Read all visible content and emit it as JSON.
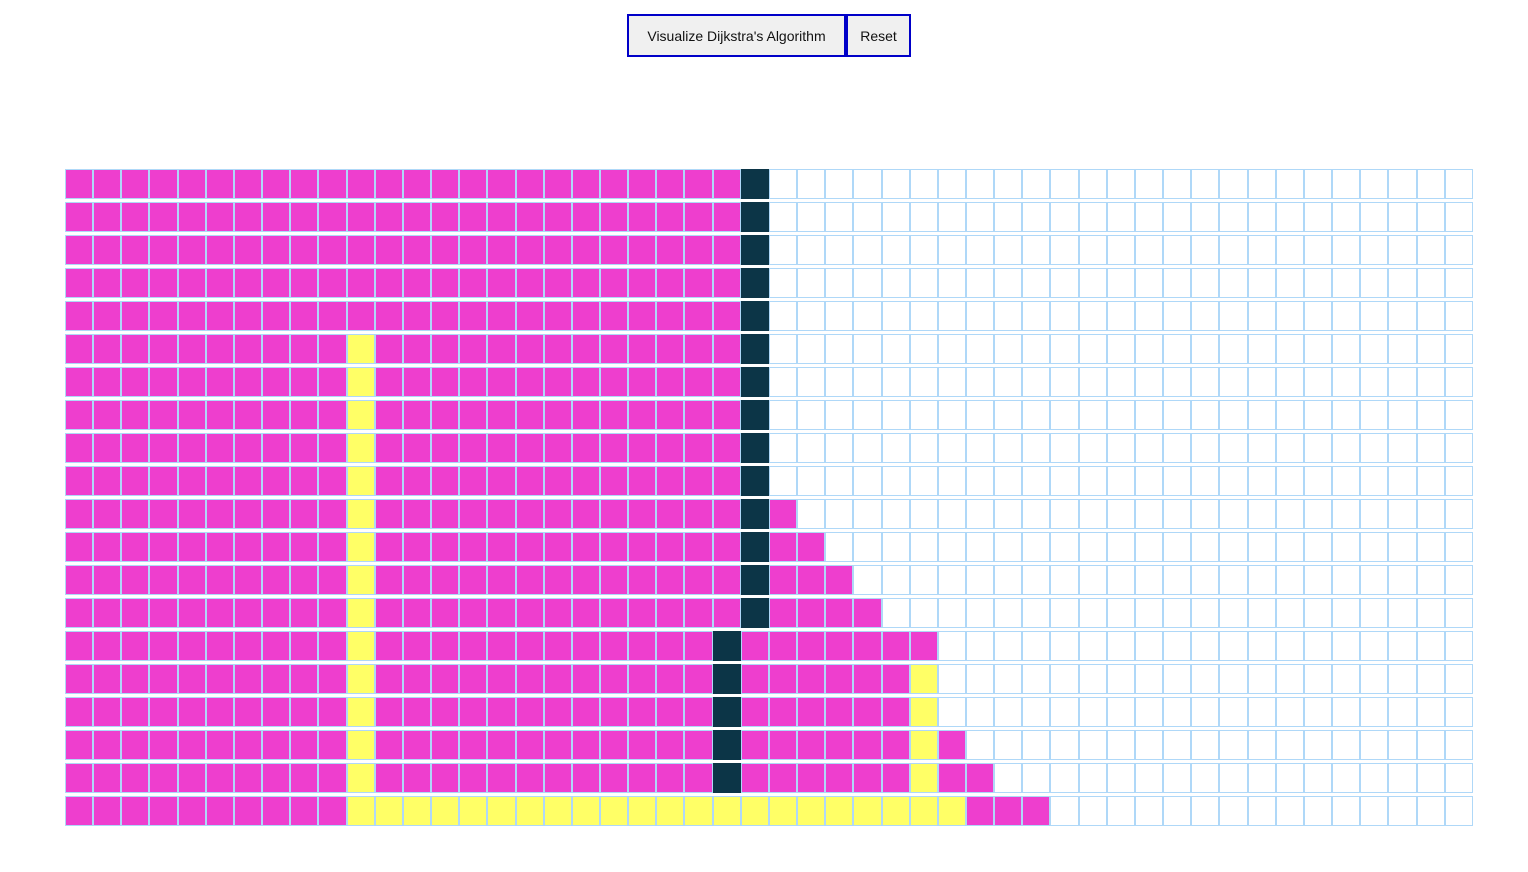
{
  "toolbar": {
    "visualize_label": "Visualize Dijkstra's Algorithm",
    "reset_label": "Reset"
  },
  "colors": {
    "unvisited": "#ffffff",
    "visited": "#ee3ece",
    "shortest_path": "#ffff66",
    "wall": "#0c3547",
    "grid_line": "#afd8f8",
    "button_border": "#0000c8"
  },
  "grid": {
    "columns": 50,
    "legend": {
      ".": "unvisited",
      "v": "visited",
      "p": "path",
      "w": "wall"
    },
    "rows": [
      "vvvvvvvvvvvvvvvvvvvvvvvvw.........................",
      "vvvvvvvvvvvvvvvvvvvvvvvvw.........................",
      "vvvvvvvvvvvvvvvvvvvvvvvvw.........................",
      "vvvvvvvvvvvvvvvvvvvvvvvvw.........................",
      "vvvvvvvvvvvvvvvvvvvvvvvvw.........................",
      "vvvvvvvvvvpvvvvvvvvvvvvvw.........................",
      "vvvvvvvvvvpvvvvvvvvvvvvvw.........................",
      "vvvvvvvvvvpvvvvvvvvvvvvvw.........................",
      "vvvvvvvvvvpvvvvvvvvvvvvvw.........................",
      "vvvvvvvvvvpvvvvvvvvvvvvvw.........................",
      "vvvvvvvvvvpvvvvvvvvvvvvvwv........................",
      "vvvvvvvvvvpvvvvvvvvvvvvvwvv.......................",
      "vvvvvvvvvvpvvvvvvvvvvvvvwvvv......................",
      "vvvvvvvvvvpvvvvvvvvvvvvvwvvvv.....................",
      "vvvvvvvvvvpvvvvvvvvvvvvwvvvvvvv...................",
      "vvvvvvvvvvpvvvvvvvvvvvvwvvvvvvp...................",
      "vvvvvvvvvvpvvvvvvvvvvvvwvvvvvvp...................",
      "vvvvvvvvvvpvvvvvvvvvvvvwvvvvvvpv..................",
      "vvvvvvvvvvpvvvvvvvvvvvvwvvvvvvpvv.................",
      "vvvvvvvvvvppppppppppppppppppppppvvv..............."
    ]
  }
}
